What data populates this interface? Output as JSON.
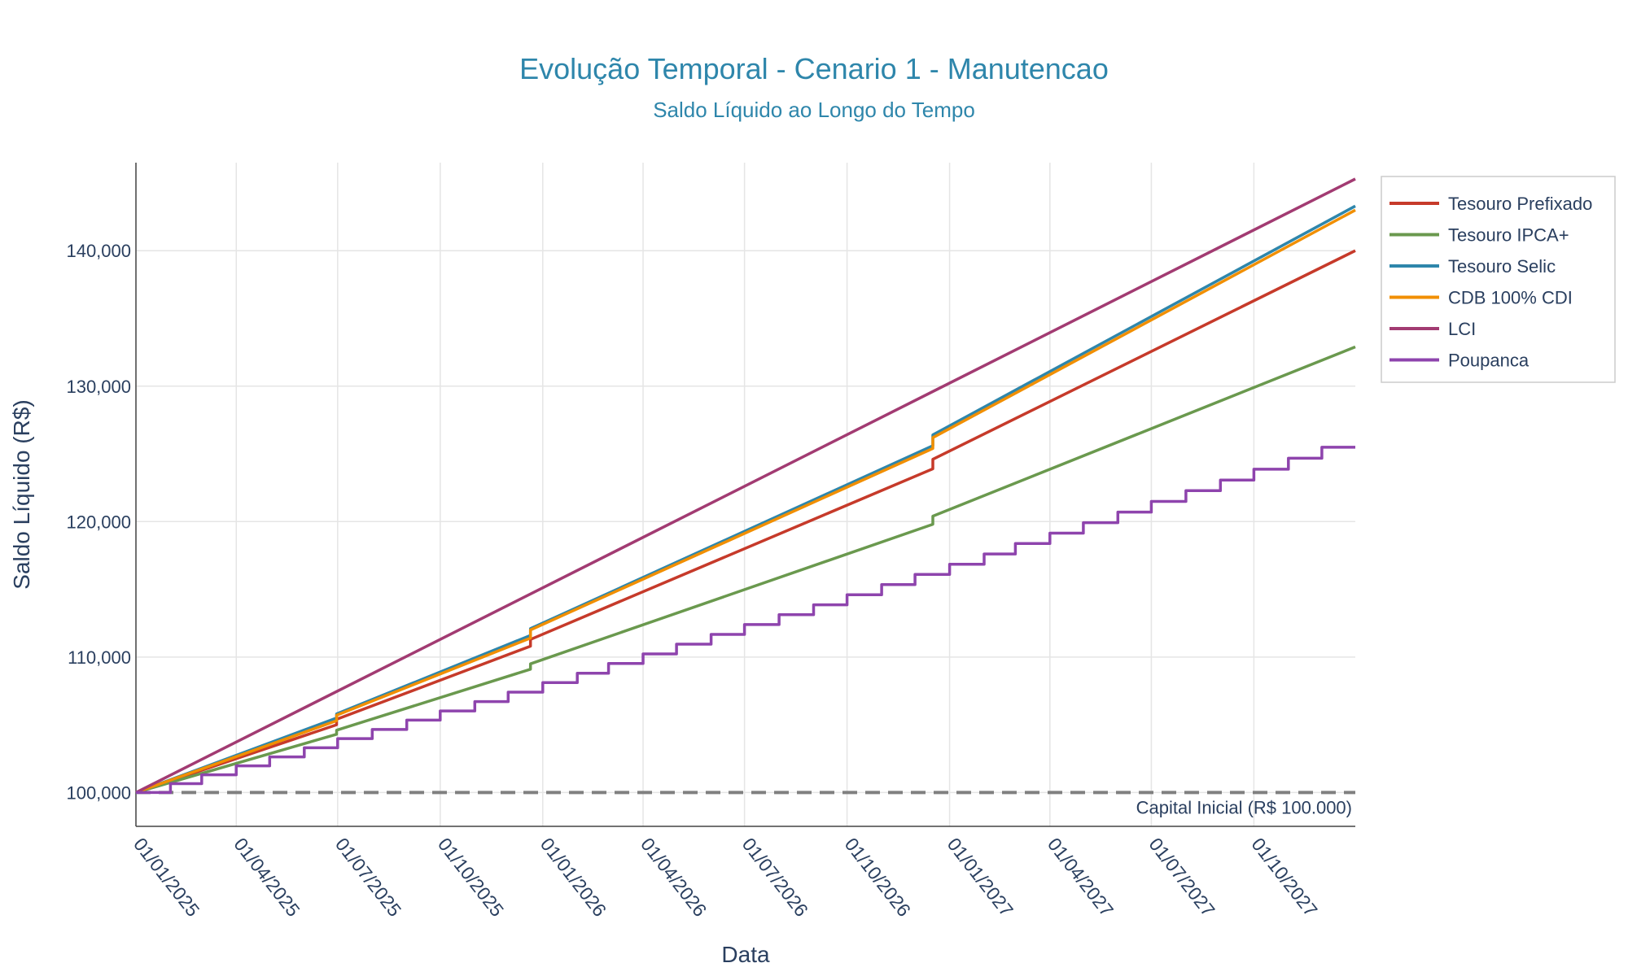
{
  "chart_data": {
    "type": "line",
    "title": "Evolução Temporal - Cenario 1 - Manutencao",
    "subtitle": "Saldo Líquido ao Longo do Tempo",
    "xlabel": "Data",
    "ylabel": "Saldo Líquido (R$)",
    "x_range": [
      "2025-01-01",
      "2027-12-31"
    ],
    "ylim": [
      97500,
      146500
    ],
    "yticks": [
      100000,
      110000,
      120000,
      130000,
      140000
    ],
    "ytick_labels": [
      "100,000",
      "110,000",
      "120,000",
      "130,000",
      "140,000"
    ],
    "xticks": [
      "2025-01-01",
      "2025-04-01",
      "2025-07-01",
      "2025-10-01",
      "2026-01-01",
      "2026-04-01",
      "2026-07-01",
      "2026-10-01",
      "2027-01-01",
      "2027-04-01",
      "2027-07-01",
      "2027-10-01"
    ],
    "xtick_labels": [
      "01/01/2025",
      "01/04/2025",
      "01/07/2025",
      "01/10/2025",
      "01/01/2026",
      "01/04/2026",
      "01/07/2026",
      "01/10/2026",
      "01/01/2027",
      "01/04/2027",
      "01/07/2027",
      "01/10/2027"
    ],
    "grid": true,
    "legend_position": "right",
    "reference_line": {
      "y": 100000,
      "label": "Capital Inicial (R$ 100.000)",
      "color": "#808080",
      "style": "dashed"
    },
    "series": [
      {
        "name": "Tesouro Prefixado",
        "color": "#c63a2a",
        "shape": "linear",
        "x": [
          "2025-01-01",
          "2025-06-30",
          "2025-06-30",
          "2025-12-21",
          "2025-12-21",
          "2026-12-17",
          "2026-12-17",
          "2027-12-31"
        ],
        "y": [
          100000,
          105000,
          105400,
          110800,
          111300,
          123900,
          124600,
          140000
        ]
      },
      {
        "name": "Tesouro IPCA+",
        "color": "#6a994e",
        "shape": "linear",
        "x": [
          "2025-01-01",
          "2025-06-30",
          "2025-06-30",
          "2025-12-21",
          "2025-12-21",
          "2026-12-17",
          "2026-12-17",
          "2027-12-31"
        ],
        "y": [
          100000,
          104300,
          104600,
          109100,
          109500,
          119800,
          120400,
          132900
        ]
      },
      {
        "name": "Tesouro Selic",
        "color": "#2e86ab",
        "shape": "linear",
        "x": [
          "2025-01-01",
          "2025-06-30",
          "2025-06-30",
          "2025-12-21",
          "2025-12-21",
          "2026-12-17",
          "2026-12-17",
          "2027-12-31"
        ],
        "y": [
          100000,
          105500,
          105800,
          111600,
          112100,
          125600,
          126400,
          143300
        ]
      },
      {
        "name": "CDB 100% CDI",
        "color": "#f18f01",
        "shape": "linear",
        "x": [
          "2025-01-01",
          "2025-06-30",
          "2025-06-30",
          "2025-12-21",
          "2025-12-21",
          "2026-12-17",
          "2026-12-17",
          "2027-12-31"
        ],
        "y": [
          100000,
          105300,
          105700,
          111400,
          112000,
          125400,
          126200,
          143000
        ]
      },
      {
        "name": "LCI",
        "color": "#a23b72",
        "shape": "linear",
        "x": [
          "2025-01-01",
          "2027-12-31"
        ],
        "y": [
          100000,
          145300
        ]
      },
      {
        "name": "Poupanca",
        "color": "#8e44ad",
        "shape": "step",
        "x": [
          "2025-01-01",
          "2025-02-01",
          "2025-03-01",
          "2025-04-01",
          "2025-05-01",
          "2025-06-01",
          "2025-07-01",
          "2025-08-01",
          "2025-09-01",
          "2025-10-01",
          "2025-11-01",
          "2025-12-01",
          "2026-01-01",
          "2026-02-01",
          "2026-03-01",
          "2026-04-01",
          "2026-05-01",
          "2026-06-01",
          "2026-07-01",
          "2026-08-01",
          "2026-09-01",
          "2026-10-01",
          "2026-11-01",
          "2026-12-01",
          "2027-01-01",
          "2027-02-01",
          "2027-03-01",
          "2027-04-01",
          "2027-05-01",
          "2027-06-01",
          "2027-07-01",
          "2027-08-01",
          "2027-09-01",
          "2027-10-01",
          "2027-11-01",
          "2027-12-01"
        ],
        "y": [
          100000,
          100650,
          101310,
          101970,
          102630,
          103300,
          103980,
          104650,
          105340,
          106020,
          106710,
          107410,
          108110,
          108810,
          109520,
          110230,
          110950,
          111670,
          112400,
          113130,
          113860,
          114600,
          115350,
          116100,
          116850,
          117610,
          118380,
          119150,
          119920,
          120700,
          121490,
          122280,
          123070,
          123870,
          124680,
          125490
        ]
      }
    ]
  }
}
